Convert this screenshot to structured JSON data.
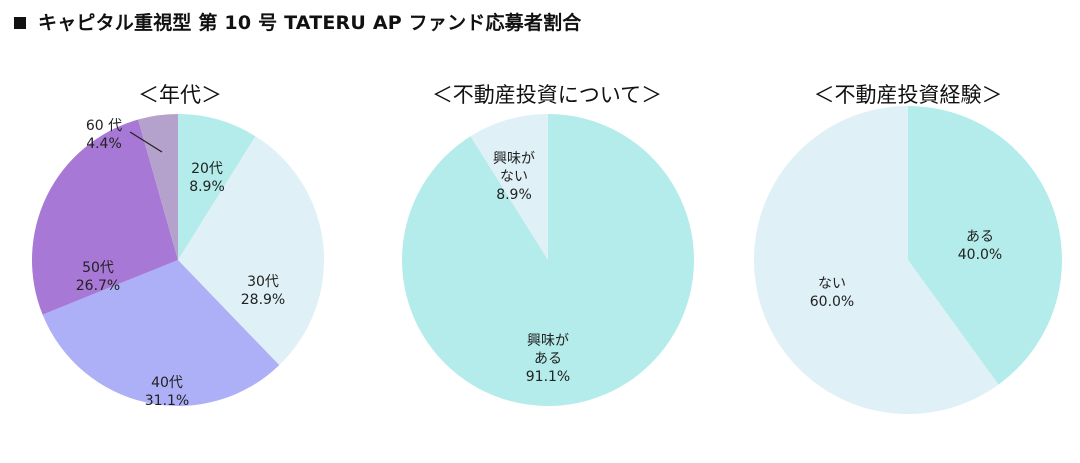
{
  "page_title": "キャピタル重視型 第 10 号 TATERU AP ファンド応募者割合",
  "chart_data": [
    {
      "type": "pie",
      "title": "＜年代＞",
      "slices": [
        {
          "label": "20代",
          "value": 8.9,
          "value_label": "8.9%",
          "color": "#b3ecea"
        },
        {
          "label": "30代",
          "value": 28.9,
          "value_label": "28.9%",
          "color": "#dff0f6"
        },
        {
          "label": "40代",
          "value": 31.1,
          "value_label": "31.1%",
          "color": "#adb0f7"
        },
        {
          "label": "50代",
          "value": 26.7,
          "value_label": "26.7%",
          "color": "#a878d6"
        },
        {
          "label": "60 代",
          "value": 4.4,
          "value_label": "4.4%",
          "color": "#b4a2cc"
        }
      ]
    },
    {
      "type": "pie",
      "title": "＜不動産投資について＞",
      "slices": [
        {
          "label": "興味が ある",
          "value": 91.1,
          "value_label": "91.1%",
          "color": "#b3ecea"
        },
        {
          "label": "興味が ない",
          "value": 8.9,
          "value_label": "8.9%",
          "color": "#dff0f6"
        }
      ]
    },
    {
      "type": "pie",
      "title": "＜不動産投資経験＞",
      "slices": [
        {
          "label": "ある",
          "value": 40.0,
          "value_label": "40.0%",
          "color": "#b3ecea"
        },
        {
          "label": "ない",
          "value": 60.0,
          "value_label": "60.0%",
          "color": "#dff0f6"
        }
      ]
    }
  ]
}
